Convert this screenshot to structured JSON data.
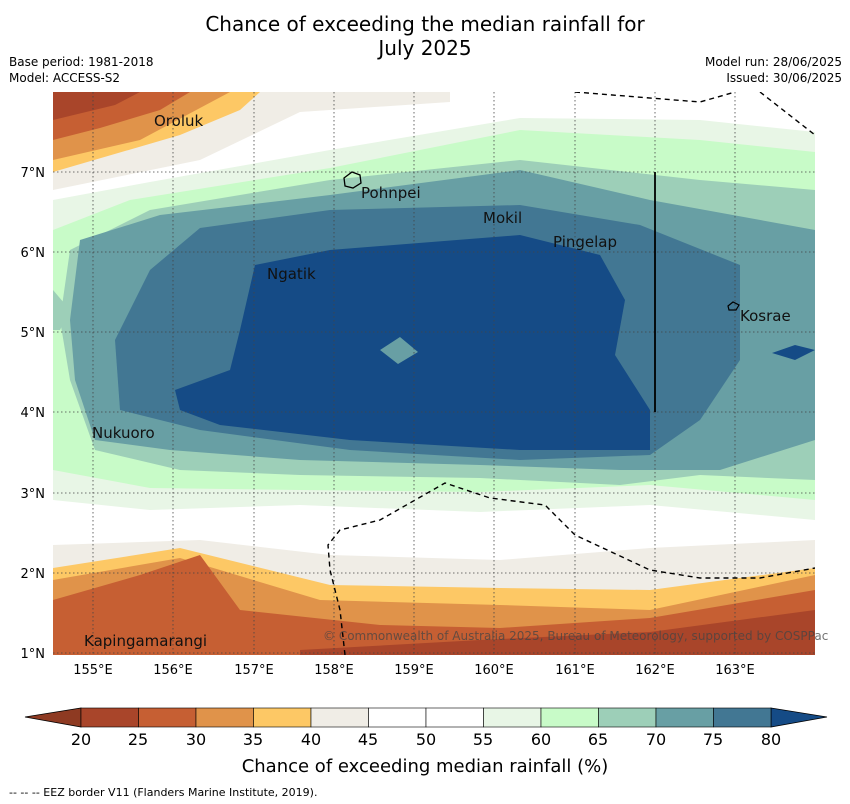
{
  "header": {
    "title_line1": "Chance of exceeding the median rainfall for",
    "title_line2": "July 2025",
    "base_period": "Base period: 1981-2018",
    "model": "Model: ACCESS-S2",
    "model_run": "Model run: 28/06/2025",
    "issued": "Issued: 30/06/2025"
  },
  "map": {
    "lon_ticks": [
      "155°E",
      "156°E",
      "157°E",
      "158°E",
      "159°E",
      "160°E",
      "161°E",
      "162°E",
      "163°E"
    ],
    "lat_ticks": [
      "7°N",
      "6°N",
      "5°N",
      "4°N",
      "3°N",
      "2°N",
      "1°N"
    ],
    "places": [
      {
        "name": "Oroluk",
        "lon": 155.75,
        "lat": 7.6
      },
      {
        "name": "Pohnpei",
        "lon": 158.3,
        "lat": 6.85
      },
      {
        "name": "Mokil",
        "lon": 160.0,
        "lat": 6.4
      },
      {
        "name": "Pingelap",
        "lon": 160.8,
        "lat": 6.1
      },
      {
        "name": "Ngatik",
        "lon": 157.15,
        "lat": 5.7
      },
      {
        "name": "Kosrae",
        "lon": 163.05,
        "lat": 5.2
      },
      {
        "name": "Nukuoro",
        "lon": 154.9,
        "lat": 3.75
      },
      {
        "name": "Kapingamarangi",
        "lon": 154.9,
        "lat": 1.15
      }
    ],
    "copyright": "© Commonwealth of Australia 2025, Bureau of Meteorology, supported by COSPPac"
  },
  "colorbar": {
    "label": "Chance of exceeding median rainfall (%)",
    "ticks": [
      "20",
      "25",
      "30",
      "35",
      "40",
      "45",
      "50",
      "55",
      "60",
      "65",
      "70",
      "75",
      "80"
    ],
    "colors": [
      "#a9452a",
      "#c65f33",
      "#e0934a",
      "#fdc865",
      "#f0ede6",
      "#ffffff",
      "#ffffff",
      "#e8f6e6",
      "#c8fbc8",
      "#9dcfb8",
      "#689fa4",
      "#427793"
    ],
    "under_color": "#8e3a22",
    "over_color": "#154b86"
  },
  "footnote": "-- -- -- EEZ border V11 (Flanders Marine Institute, 2019)."
}
